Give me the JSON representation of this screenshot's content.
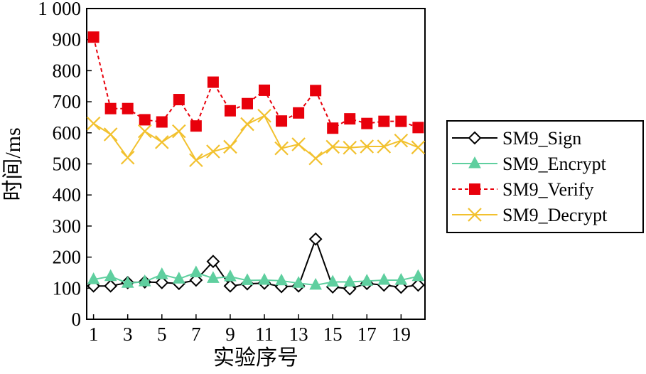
{
  "chart_data": {
    "type": "line",
    "xlabel": "实验序号",
    "ylabel": "时间/ms",
    "x": [
      1,
      2,
      3,
      4,
      5,
      6,
      7,
      8,
      9,
      10,
      11,
      12,
      13,
      14,
      15,
      16,
      17,
      18,
      19,
      20
    ],
    "xlim": [
      0.6,
      20.4
    ],
    "ylim": [
      0,
      1000
    ],
    "xticks": [
      1,
      3,
      5,
      7,
      9,
      11,
      13,
      15,
      17,
      19
    ],
    "xtick_labels": [
      "1",
      "3",
      "5",
      "7",
      "9",
      "11",
      "13",
      "15",
      "17",
      "19"
    ],
    "yticks": [
      0,
      100,
      200,
      300,
      400,
      500,
      600,
      700,
      800,
      900,
      1000
    ],
    "ytick_labels": [
      "0",
      "100",
      "200",
      "300",
      "400",
      "500",
      "600",
      "700",
      "800",
      "900",
      "1 000"
    ],
    "grid": false,
    "legend_position": "right",
    "series": [
      {
        "name": "SM9_Sign",
        "color": "#000000",
        "marker": "diamond-open",
        "line_style": "solid",
        "values": [
          107,
          107,
          118,
          120,
          118,
          115,
          126,
          186,
          107,
          114,
          116,
          105,
          107,
          258,
          104,
          98,
          115,
          110,
          103,
          110
        ]
      },
      {
        "name": "SM9_Encrypt",
        "color": "#5fcf9f",
        "marker": "triangle",
        "line_style": "solid",
        "values": [
          128,
          138,
          116,
          121,
          144,
          130,
          150,
          132,
          137,
          125,
          126,
          124,
          116,
          110,
          120,
          120,
          123,
          126,
          126,
          138
        ]
      },
      {
        "name": "SM9_Verify",
        "color": "#e8000b",
        "marker": "square",
        "line_style": "dashed",
        "values": [
          908,
          678,
          678,
          642,
          635,
          707,
          622,
          763,
          671,
          694,
          737,
          638,
          664,
          736,
          615,
          645,
          630,
          637,
          637,
          617
        ]
      },
      {
        "name": "SM9_Decrypt",
        "color": "#f2c12e",
        "marker": "x",
        "line_style": "solid",
        "values": [
          630,
          595,
          520,
          605,
          570,
          605,
          512,
          540,
          555,
          628,
          655,
          550,
          563,
          518,
          555,
          552,
          556,
          556,
          575,
          553
        ]
      }
    ]
  }
}
